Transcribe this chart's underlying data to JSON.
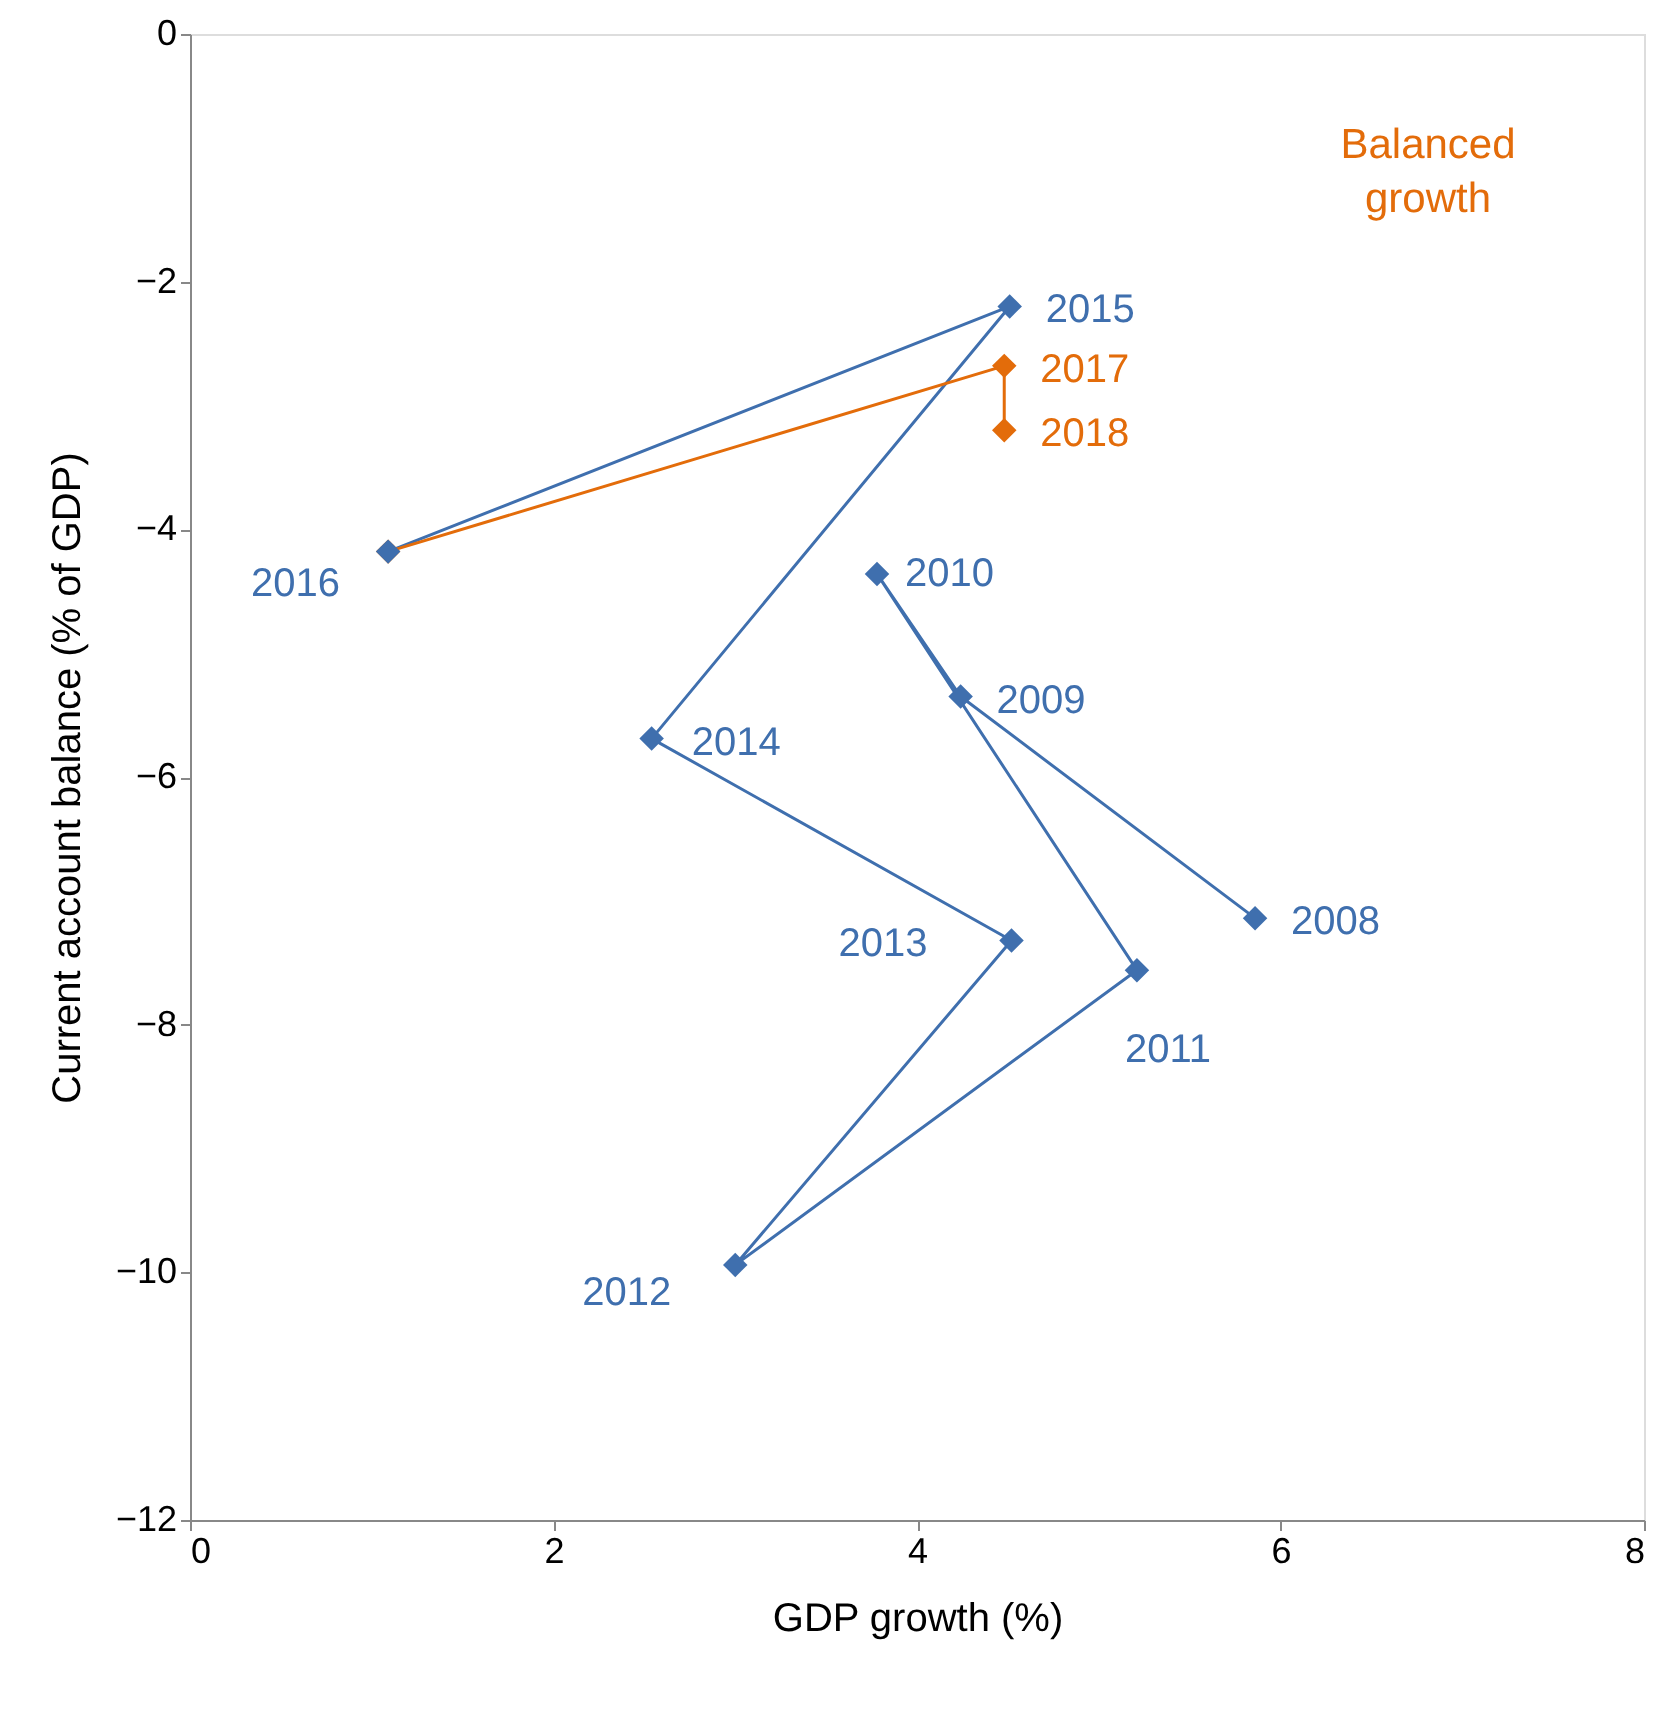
{
  "chart_data": {
    "type": "line",
    "xlabel": "GDP growth (%)",
    "ylabel": "Current  account balance (% of GDP)",
    "xlim": [
      0,
      8
    ],
    "xticks": [
      0,
      2,
      4,
      6,
      8
    ],
    "ylim": [
      -12,
      0
    ],
    "yticks": [
      -12,
      -10,
      -8,
      -6,
      -4,
      -2,
      0
    ],
    "grid": false,
    "marker": "diamond",
    "line_style": "solid",
    "annotations": [
      "Balanced growth",
      {
        "text": "2008",
        "x": 5.86,
        "y": -7.14
      },
      {
        "text": "2009",
        "x": 4.24,
        "y": -5.35
      },
      {
        "text": "2010",
        "x": 3.78,
        "y": -4.36
      },
      {
        "text": "2011",
        "x": 5.21,
        "y": -7.56
      },
      {
        "text": "2012",
        "x": 3.0,
        "y": -9.94
      },
      {
        "text": "2013",
        "x": 4.52,
        "y": -7.32
      },
      {
        "text": "2014",
        "x": 2.54,
        "y": -5.69
      },
      {
        "text": "2015",
        "x": 4.51,
        "y": -2.2
      },
      {
        "text": "2016",
        "x": 1.09,
        "y": -4.18
      },
      {
        "text": "2017",
        "x": 4.48,
        "y": -2.68
      },
      {
        "text": "2018",
        "x": 4.48,
        "y": -3.2
      }
    ],
    "series": [
      {
        "color": "#3f6fae",
        "x": [
          5.86,
          4.24,
          3.78,
          5.21,
          3.0,
          4.52,
          2.54,
          4.51,
          1.09
        ],
        "values": [
          -7.14,
          -5.35,
          -4.36,
          -7.56,
          -9.94,
          -7.32,
          -5.69,
          -2.2,
          -4.18
        ]
      },
      {
        "color": "#e36c0a",
        "x": [
          1.09,
          4.48,
          4.48
        ],
        "values": [
          -4.18,
          -2.68,
          -3.2
        ]
      }
    ]
  }
}
